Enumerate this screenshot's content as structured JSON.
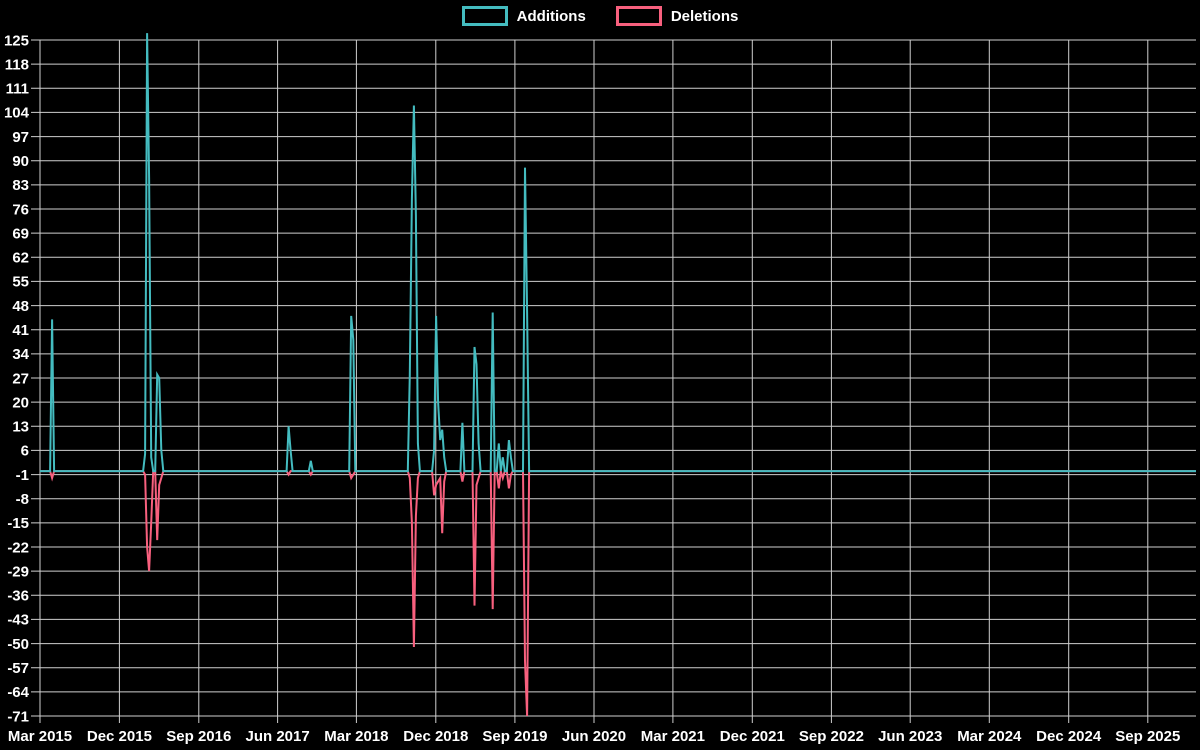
{
  "chart_data": {
    "type": "line",
    "title": "",
    "background": "#000000",
    "grid": true,
    "legend_position": "top-center",
    "colors": {
      "grid": "#cfcfcf",
      "text": "#ffffff",
      "additions": "#44bcc0",
      "deletions": "#f8607e"
    },
    "x_axis": {
      "unit": "time",
      "sampling": "weekly",
      "range": [
        "2015-03-01",
        "2026-02-15"
      ],
      "ticks": [
        {
          "label": "Mar 2015",
          "date": "2015-03-01"
        },
        {
          "label": "Dec 2015",
          "date": "2015-12-01"
        },
        {
          "label": "Sep 2016",
          "date": "2016-09-01"
        },
        {
          "label": "Jun 2017",
          "date": "2017-06-01"
        },
        {
          "label": "Mar 2018",
          "date": "2018-03-01"
        },
        {
          "label": "Dec 2018",
          "date": "2018-12-01"
        },
        {
          "label": "Sep 2019",
          "date": "2019-09-01"
        },
        {
          "label": "Jun 2020",
          "date": "2020-06-01"
        },
        {
          "label": "Mar 2021",
          "date": "2021-03-01"
        },
        {
          "label": "Dec 2021",
          "date": "2021-12-01"
        },
        {
          "label": "Sep 2022",
          "date": "2022-09-01"
        },
        {
          "label": "Jun 2023",
          "date": "2023-06-01"
        },
        {
          "label": "Mar 2024",
          "date": "2024-03-01"
        },
        {
          "label": "Dec 2024",
          "date": "2024-12-01"
        },
        {
          "label": "Sep 2025",
          "date": "2025-09-01"
        }
      ]
    },
    "y_axis": {
      "min": -71,
      "max": 125,
      "step": 7,
      "ticks": [
        125,
        118,
        111,
        104,
        97,
        90,
        83,
        76,
        69,
        62,
        55,
        48,
        41,
        34,
        27,
        20,
        13,
        6,
        -1,
        -8,
        -15,
        -22,
        -29,
        -36,
        -43,
        -50,
        -57,
        -64,
        -71
      ]
    },
    "series": [
      {
        "name": "Additions",
        "color": "#44bcc0",
        "default_value": 0,
        "points": [
          {
            "date": "2015-04-12",
            "value": 44
          },
          {
            "date": "2016-02-28",
            "value": 5
          },
          {
            "date": "2016-03-06",
            "value": 127
          },
          {
            "date": "2016-03-13",
            "value": 85
          },
          {
            "date": "2016-03-20",
            "value": 4
          },
          {
            "date": "2016-04-10",
            "value": 28
          },
          {
            "date": "2016-04-17",
            "value": 27
          },
          {
            "date": "2016-04-24",
            "value": 6
          },
          {
            "date": "2017-07-09",
            "value": 13
          },
          {
            "date": "2017-07-16",
            "value": 6
          },
          {
            "date": "2017-09-24",
            "value": 3
          },
          {
            "date": "2018-02-11",
            "value": 45
          },
          {
            "date": "2018-02-18",
            "value": 38
          },
          {
            "date": "2018-09-02",
            "value": 28
          },
          {
            "date": "2018-09-09",
            "value": 79
          },
          {
            "date": "2018-09-16",
            "value": 106
          },
          {
            "date": "2018-09-23",
            "value": 74
          },
          {
            "date": "2018-09-30",
            "value": 8
          },
          {
            "date": "2018-11-25",
            "value": 6
          },
          {
            "date": "2018-12-02",
            "value": 45
          },
          {
            "date": "2018-12-09",
            "value": 20
          },
          {
            "date": "2018-12-16",
            "value": 9
          },
          {
            "date": "2018-12-23",
            "value": 12
          },
          {
            "date": "2018-12-30",
            "value": 4
          },
          {
            "date": "2019-03-03",
            "value": 14
          },
          {
            "date": "2019-04-14",
            "value": 36
          },
          {
            "date": "2019-04-21",
            "value": 31
          },
          {
            "date": "2019-04-28",
            "value": 8
          },
          {
            "date": "2019-06-16",
            "value": 46
          },
          {
            "date": "2019-07-07",
            "value": 8
          },
          {
            "date": "2019-07-21",
            "value": 4
          },
          {
            "date": "2019-08-11",
            "value": 9
          },
          {
            "date": "2019-08-18",
            "value": 4
          },
          {
            "date": "2019-10-06",
            "value": 88
          },
          {
            "date": "2019-10-13",
            "value": 46
          }
        ]
      },
      {
        "name": "Deletions",
        "color": "#f8607e",
        "default_value": 0,
        "points": [
          {
            "date": "2015-04-12",
            "value": -2
          },
          {
            "date": "2016-02-28",
            "value": -1
          },
          {
            "date": "2016-03-06",
            "value": -22
          },
          {
            "date": "2016-03-13",
            "value": -29
          },
          {
            "date": "2016-03-20",
            "value": -15
          },
          {
            "date": "2016-04-10",
            "value": -20
          },
          {
            "date": "2016-04-17",
            "value": -4
          },
          {
            "date": "2016-04-24",
            "value": -2
          },
          {
            "date": "2017-07-09",
            "value": -1
          },
          {
            "date": "2017-09-24",
            "value": -1
          },
          {
            "date": "2018-02-11",
            "value": -2
          },
          {
            "date": "2018-02-18",
            "value": -1
          },
          {
            "date": "2018-09-02",
            "value": -2
          },
          {
            "date": "2018-09-09",
            "value": -15
          },
          {
            "date": "2018-09-16",
            "value": -51
          },
          {
            "date": "2018-09-23",
            "value": -13
          },
          {
            "date": "2018-09-30",
            "value": -2
          },
          {
            "date": "2018-11-25",
            "value": -7
          },
          {
            "date": "2018-12-02",
            "value": -4
          },
          {
            "date": "2018-12-09",
            "value": -3
          },
          {
            "date": "2018-12-16",
            "value": -2
          },
          {
            "date": "2018-12-23",
            "value": -18
          },
          {
            "date": "2018-12-30",
            "value": -3
          },
          {
            "date": "2019-03-03",
            "value": -3
          },
          {
            "date": "2019-04-14",
            "value": -39
          },
          {
            "date": "2019-04-21",
            "value": -4
          },
          {
            "date": "2019-04-28",
            "value": -2
          },
          {
            "date": "2019-06-16",
            "value": -40
          },
          {
            "date": "2019-07-07",
            "value": -5
          },
          {
            "date": "2019-07-21",
            "value": -2
          },
          {
            "date": "2019-08-11",
            "value": -5
          },
          {
            "date": "2019-08-18",
            "value": -1
          },
          {
            "date": "2019-10-06",
            "value": -55
          },
          {
            "date": "2019-10-13",
            "value": -71
          }
        ]
      }
    ]
  }
}
